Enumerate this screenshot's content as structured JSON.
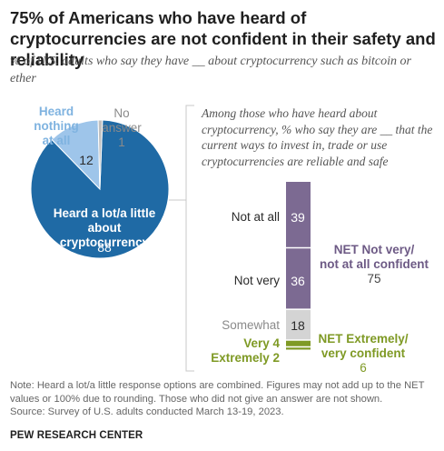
{
  "title": "75% of Americans who have heard of cryptocurrencies are not confident in their safety and reliability",
  "subtitle": "% of U.S. adults who say they have __ about cryptocurrency such as bitcoin or ether",
  "colors": {
    "heard_a_lot": "#1f6aa5",
    "heard_nothing": "#9ec5ea",
    "no_answer": "#c0c0c0",
    "not_confident": "#7c6a92",
    "somewhat": "#d4d4d4",
    "confident": "#7f9a25"
  },
  "chart_data": [
    {
      "type": "pie",
      "title": "% of U.S. adults who say they have __ about cryptocurrency such as bitcoin or ether",
      "labels": [
        "Heard a lot/a little about cryptocurrency",
        "Heard nothing at all",
        "No answer"
      ],
      "values": [
        88,
        12,
        1
      ]
    },
    {
      "type": "bar",
      "stacked": true,
      "title": "Among those who have heard about cryptocurrency, % who say they are __ that the current ways to invest in, trade or use cryptocurrencies are reliable and safe",
      "categories": [
        "Not at all",
        "Not very",
        "Somewhat",
        "Very",
        "Extremely"
      ],
      "values": [
        39,
        36,
        18,
        4,
        2
      ],
      "nets": [
        {
          "label": "NET Not very/ not at all confident",
          "value": 75
        },
        {
          "label": "NET Extremely/ very confident",
          "value": 6
        }
      ]
    }
  ],
  "pie": {
    "label_main": "Heard a lot/a little about cryptocurrency",
    "value_main": "88",
    "label_nothing": "Heard nothing at all",
    "value_nothing": "12",
    "label_noanswer": "No answer",
    "value_noanswer": "1"
  },
  "bar": {
    "header": "Among those who have heard about cryptocurrency, % who say they are __ that the current ways to invest in, trade or use cryptocurrencies are reliable and safe",
    "seg_not_at_all_label": "Not at all",
    "seg_not_at_all_value": "39",
    "seg_not_very_label": "Not very",
    "seg_not_very_value": "36",
    "seg_somewhat_label": "Somewhat",
    "seg_somewhat_value": "18",
    "seg_very_label": "Very 4",
    "seg_extremely_label": "Extremely 2",
    "net_not_label_1": "NET Not very/",
    "net_not_label_2": "not at all confident",
    "net_not_value": "75",
    "net_conf_label_1": "NET Extremely/",
    "net_conf_label_2": "very confident",
    "net_conf_value": "6"
  },
  "note": "Note: Heard a lot/a little response options are combined. Figures may not add up to the NET values or 100% due to rounding. Those who did not give an answer are not shown.",
  "source": "Source: Survey of U.S. adults conducted March 13-19, 2023.",
  "brand": "PEW RESEARCH CENTER"
}
